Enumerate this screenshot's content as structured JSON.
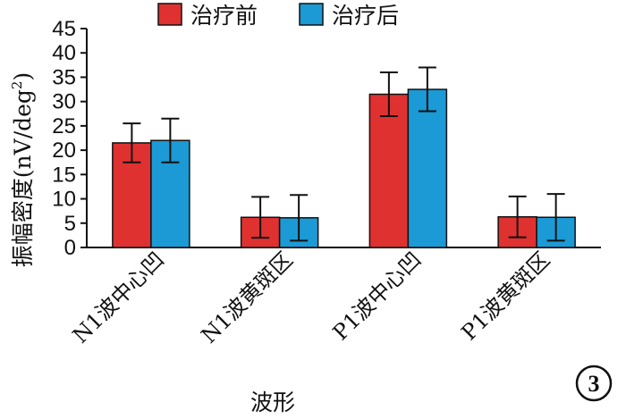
{
  "chart_data": {
    "type": "bar",
    "title": "",
    "xlabel": "波形",
    "ylabel": "振幅密度(nV/deg",
    "ylabel_superscript": "2",
    "ylabel_suffix": ")",
    "ylim": [
      0,
      45
    ],
    "yticks": [
      0,
      5,
      10,
      15,
      20,
      25,
      30,
      35,
      40,
      45
    ],
    "grid": false,
    "legend_position": "top",
    "categories": [
      "N1波中心凹",
      "N1波黄斑区",
      "P1波中心凹",
      "P1波黄斑区"
    ],
    "series": [
      {
        "name": "治疗前",
        "color": "#e03131",
        "values": [
          21.5,
          6.2,
          31.5,
          6.3
        ],
        "error": [
          4.0,
          4.2,
          4.5,
          4.2
        ]
      },
      {
        "name": "治疗后",
        "color": "#1b9ad6",
        "values": [
          22.0,
          6.1,
          32.5,
          6.2
        ],
        "error": [
          4.5,
          4.7,
          4.5,
          4.8
        ]
      }
    ],
    "badge": "3"
  }
}
